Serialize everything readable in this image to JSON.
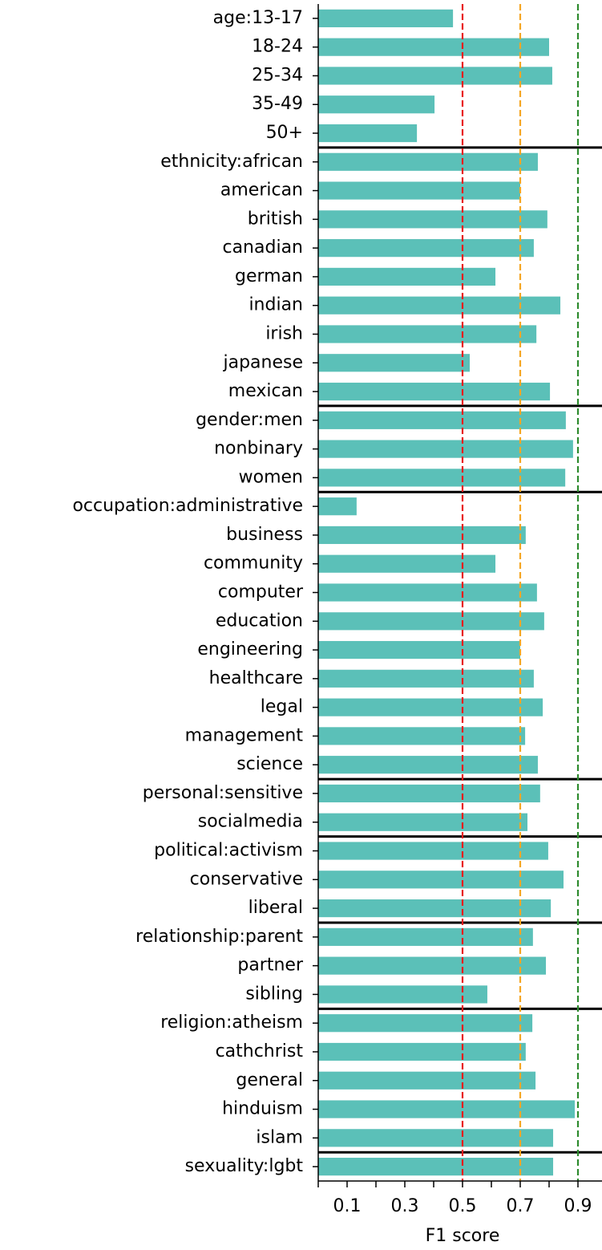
{
  "chart_data": {
    "type": "bar",
    "orientation": "horizontal",
    "x_label": "F1 score",
    "categories": [
      "age:13-17",
      "18-24",
      "25-34",
      "35-49",
      "50+",
      "ethnicity:african",
      "american",
      "british",
      "canadian",
      "german",
      "indian",
      "irish",
      "japanese",
      "mexican",
      "gender:men",
      "nonbinary",
      "women",
      "occupation:administrative",
      "business",
      "community",
      "computer",
      "education",
      "engineering",
      "healthcare",
      "legal",
      "management",
      "science",
      "personal:sensitive",
      "socialmedia",
      "political:activism",
      "conservative",
      "liberal",
      "relationship:parent",
      "partner",
      "sibling",
      "religion:atheism",
      "cathchrist",
      "general",
      "hinduism",
      "islam",
      "sexuality:lgbt"
    ],
    "values": [
      0.467,
      0.8,
      0.811,
      0.403,
      0.342,
      0.761,
      0.7,
      0.794,
      0.747,
      0.614,
      0.839,
      0.756,
      0.525,
      0.803,
      0.858,
      0.883,
      0.856,
      0.133,
      0.719,
      0.614,
      0.758,
      0.783,
      0.7,
      0.747,
      0.778,
      0.717,
      0.761,
      0.769,
      0.725,
      0.797,
      0.85,
      0.806,
      0.744,
      0.789,
      0.586,
      0.742,
      0.719,
      0.753,
      0.889,
      0.814,
      0.814
    ],
    "color": "#5bc0b8",
    "xlim": [
      0,
      0.985
    ],
    "xticks": [
      0.1,
      0.3,
      0.5,
      0.7,
      0.9
    ],
    "xminorticks": [
      0,
      0.2,
      0.4,
      0.6,
      0.8
    ],
    "reference_lines": [
      {
        "value": 0.5,
        "color": "#e8191a"
      },
      {
        "value": 0.7,
        "color": "#f5a623"
      },
      {
        "value": 0.9,
        "color": "#2e8b2e"
      }
    ]
  }
}
